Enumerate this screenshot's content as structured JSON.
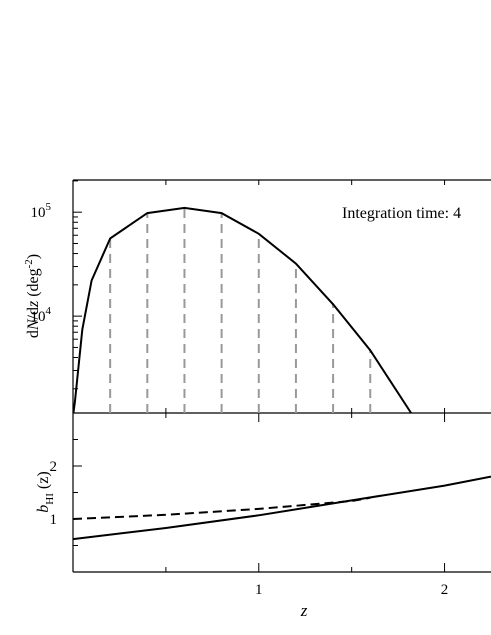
{
  "chart_data": [
    {
      "type": "line",
      "scale": "log",
      "annotation": "Integration time: 4",
      "ylabel": {
        "pre": "d",
        "n": "N",
        "mid": "/d",
        "z": "z",
        "open": " (deg",
        "sup": "-2",
        "close": ")"
      },
      "xlim": [
        0,
        2.25
      ],
      "xminor": [
        0.5,
        1,
        1.5,
        2
      ],
      "ylim": [
        1170,
        204000
      ],
      "yticks": [
        {
          "value": 10000,
          "label": "10",
          "exponent": "4"
        },
        {
          "value": 100000,
          "label": "10",
          "exponent": "5"
        }
      ],
      "yminor": [
        2000,
        3000,
        4000,
        5000,
        6000,
        7000,
        8000,
        9000,
        20000,
        30000,
        40000,
        50000,
        60000,
        70000,
        80000,
        90000,
        200000
      ],
      "curve": {
        "color": "#000000",
        "x": [
          0.002,
          0.01,
          0.05,
          0.1,
          0.2,
          0.4,
          0.6,
          0.8,
          1.0,
          1.2,
          1.4,
          1.6,
          1.82
        ],
        "values": [
          1170,
          1500,
          7400,
          22000,
          56000,
          98000,
          110000,
          98000,
          62000,
          32000,
          13000,
          4700,
          1170
        ]
      },
      "bins": {
        "color": "#999999",
        "x": [
          0.2,
          0.4,
          0.6,
          0.8,
          1.0,
          1.2,
          1.4,
          1.6
        ],
        "values": [
          56000,
          98000,
          110000,
          98000,
          62000,
          32000,
          13000,
          4700
        ]
      }
    },
    {
      "type": "line",
      "ylabel": {
        "b": "b",
        "sub": "HI",
        "rest": " (z)"
      },
      "xlabel": "z",
      "xlim": [
        0,
        2.25
      ],
      "xticks": [
        1,
        2
      ],
      "xminor": [
        0.5,
        1.5
      ],
      "ylim": [
        0,
        3
      ],
      "yticks": [
        1,
        2
      ],
      "yminor": [
        0.5,
        1.5,
        2.5
      ],
      "series": [
        {
          "style": "solid",
          "color": "#000000",
          "x": [
            0,
            0.5,
            1.0,
            1.5,
            2.0,
            2.25
          ],
          "values": [
            0.62,
            0.83,
            1.07,
            1.35,
            1.63,
            1.8
          ]
        },
        {
          "style": "dashed",
          "color": "#000000",
          "x": [
            0,
            0.5,
            1.0,
            1.5,
            1.6
          ],
          "values": [
            1.0,
            1.08,
            1.19,
            1.34,
            1.4
          ]
        }
      ]
    }
  ]
}
